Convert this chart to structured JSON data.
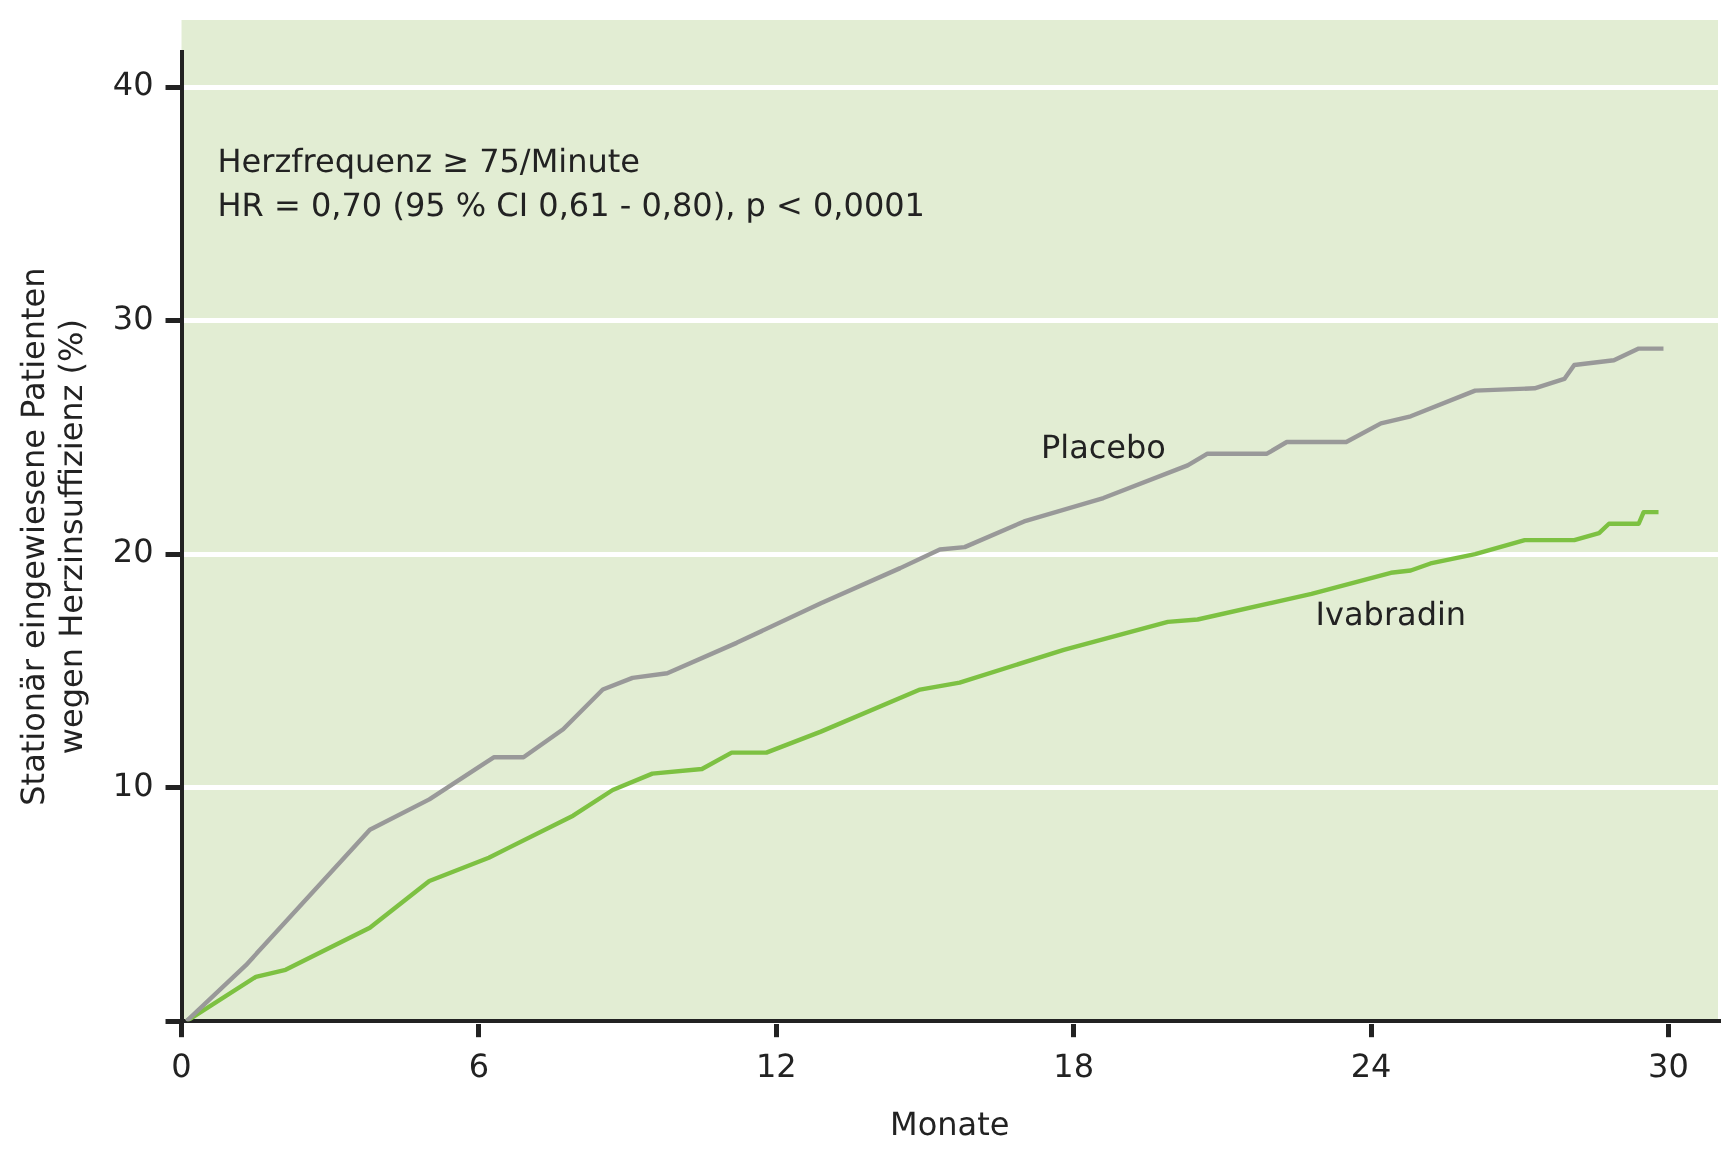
{
  "chart_data": {
    "type": "line",
    "xlabel": "Monate",
    "ylabel": "Stationär eingewiesene Patienten\nwegen Herzinsuffizienz (%)",
    "annotations": [
      "Herzfrequenz ≥ 75/Minute",
      "HR = 0,70 (95 % CI 0,61 - 0,80), p < 0,0001"
    ],
    "xlim": [
      0,
      31
    ],
    "xticks": [
      0,
      6,
      12,
      18,
      24,
      30
    ],
    "ylim": [
      0,
      41.5
    ],
    "yticks": [
      {
        "value": 0,
        "label": null
      },
      10,
      20,
      30,
      40
    ],
    "grid": "y",
    "legend": false,
    "marker": "none",
    "line_style": "solid",
    "series": [
      {
        "name": "Placebo",
        "color": "#999999",
        "x": [
          0.1,
          1.3,
          3.8,
          5,
          6.3,
          6.9,
          7.7,
          8.5,
          9.1,
          9.8,
          11.2,
          12.9,
          14.5,
          15.3,
          15.8,
          17,
          18.6,
          20.3,
          20.7,
          21.9,
          22.3,
          23.5,
          24.2,
          24.8,
          26.1,
          27.3,
          27.9,
          28.1,
          28.9,
          29.4,
          29.9
        ],
        "values": [
          0,
          2.4,
          8.2,
          9.5,
          11.3,
          11.3,
          12.5,
          14.2,
          14.7,
          14.9,
          16.2,
          17.9,
          19.4,
          20.2,
          20.3,
          21.4,
          22.4,
          23.8,
          24.3,
          24.3,
          24.8,
          24.8,
          25.6,
          25.9,
          27,
          27.1,
          27.5,
          28.1,
          28.3,
          28.8,
          28.8
        ]
      },
      {
        "name": "Ivabradin",
        "color": "#7dc142",
        "x": [
          0.1,
          1.5,
          2.1,
          3.8,
          5,
          6.2,
          7.9,
          8.7,
          9.5,
          10.5,
          11.1,
          11.8,
          12.9,
          14.9,
          15.7,
          17.8,
          19.9,
          20.5,
          22.8,
          24.4,
          24.8,
          25.2,
          26.1,
          27.1,
          28.1,
          28.6,
          28.8,
          29.4,
          29.5,
          29.8
        ],
        "values": [
          0,
          1.9,
          2.2,
          4,
          6,
          7,
          8.8,
          9.9,
          10.6,
          10.8,
          11.5,
          11.5,
          12.4,
          14.2,
          14.5,
          15.9,
          17.1,
          17.2,
          18.3,
          19.2,
          19.3,
          19.6,
          20,
          20.6,
          20.6,
          20.9,
          21.3,
          21.3,
          21.8,
          21.8
        ]
      }
    ]
  }
}
